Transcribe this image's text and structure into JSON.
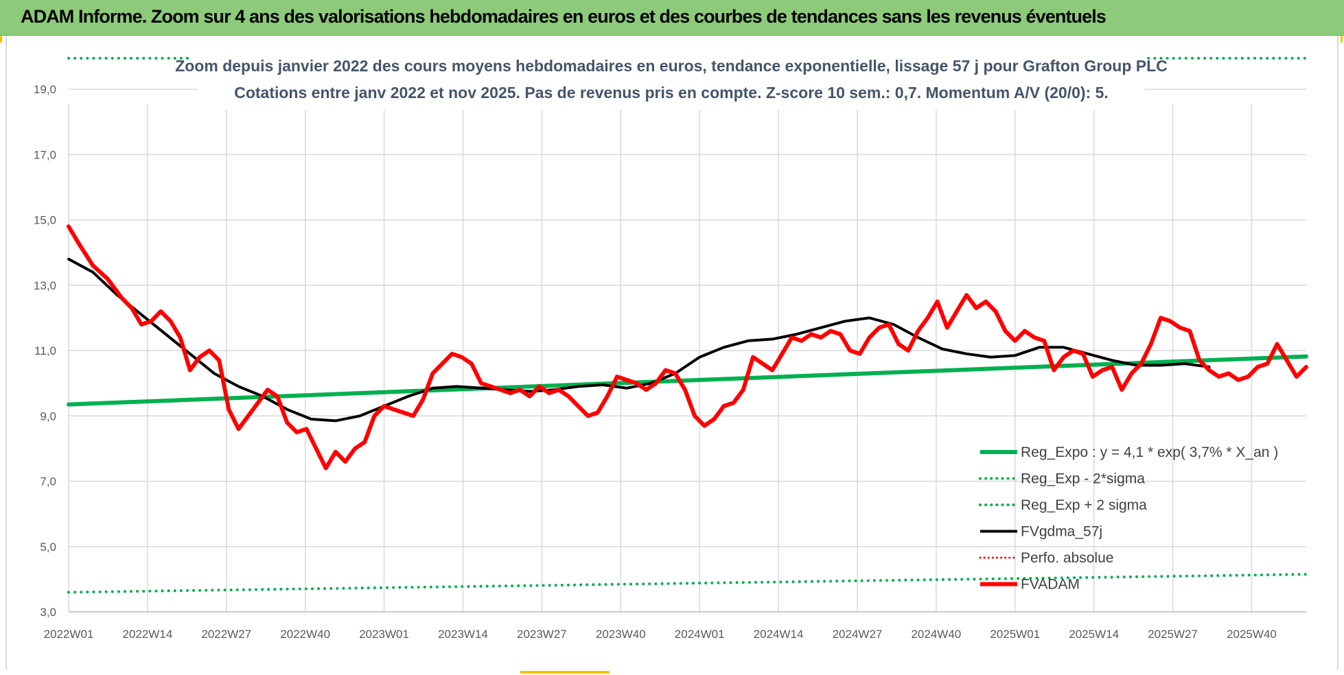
{
  "banner": {
    "title": "ADAM Informe. Zoom sur 4 ans des valorisations hebdomadaires en euros et des courbes de tendances sans les revenus éventuels"
  },
  "colors": {
    "banner_bg": "#8dcb7a",
    "reg_expo": "#00b050",
    "fvgdma": "#000000",
    "fvadam": "#ff0000",
    "perfo": "#ff0000",
    "grid": "#d9d9d9",
    "subtitle": "#44546a"
  },
  "chart_data": {
    "type": "line",
    "title": "Zoom depuis janvier 2022 des cours moyens hebdomadaires en euros, tendance exponentielle, lissage 57 j pour Grafton Group PLC",
    "subtitle": "Cotations entre janv 2022 et nov 2025. Pas de revenus pris en compte. Z-score 10 sem.: 0,7. Momentum A/V (20/0): 5.",
    "xlabel": "",
    "ylabel": "",
    "x_ticks": [
      "2022W01",
      "2022W14",
      "2022W27",
      "2022W40",
      "2023W01",
      "2023W14",
      "2023W27",
      "2023W40",
      "2024W01",
      "2024W14",
      "2024W27",
      "2024W40",
      "2025W01",
      "2025W14",
      "2025W27",
      "2025W40"
    ],
    "y_ticks": [
      "3,0",
      "5,0",
      "7,0",
      "9,0",
      "11,0",
      "13,0",
      "15,0",
      "17,0",
      "19,0"
    ],
    "ylim": [
      3,
      19.8
    ],
    "n_weeks": 205,
    "grid": true,
    "legend_position": "bottom-right",
    "legend": [
      {
        "key": "reg_expo",
        "label": "Reg_Expo : y = 4,1 * exp( 3,7% *  X_an )",
        "style": "solid-thick"
      },
      {
        "key": "reg_minus",
        "label": "Reg_Exp - 2*sigma",
        "style": "dotted"
      },
      {
        "key": "reg_plus",
        "label": "Reg_Exp + 2 sigma",
        "style": "dotted"
      },
      {
        "key": "fvgdma",
        "label": "FVgdma_57j",
        "style": "solid"
      },
      {
        "key": "perfo",
        "label": "Perfo. absolue",
        "style": "dotted"
      },
      {
        "key": "fvadam",
        "label": "FVADAM",
        "style": "solid-thick"
      }
    ],
    "series": [
      {
        "name": "Reg_Expo",
        "points": [
          [
            0,
            9.35
          ],
          [
            204,
            10.82
          ]
        ]
      },
      {
        "name": "Reg_Exp - 2*sigma",
        "points": [
          [
            0,
            3.6
          ],
          [
            204,
            4.15
          ]
        ]
      },
      {
        "name": "Reg_Exp + 2 sigma",
        "points": [
          [
            0,
            19.95
          ],
          [
            20,
            19.95
          ]
        ],
        "points_b": [
          [
            178,
            19.95
          ],
          [
            204,
            19.95
          ]
        ]
      },
      {
        "name": "FVgdma_57j",
        "points": [
          [
            0,
            13.8
          ],
          [
            5,
            13.4
          ],
          [
            10,
            12.7
          ],
          [
            15,
            12.1
          ],
          [
            20,
            11.5
          ],
          [
            25,
            10.9
          ],
          [
            30,
            10.3
          ],
          [
            35,
            9.9
          ],
          [
            40,
            9.6
          ],
          [
            45,
            9.2
          ],
          [
            50,
            8.9
          ],
          [
            55,
            8.85
          ],
          [
            60,
            9.0
          ],
          [
            65,
            9.3
          ],
          [
            70,
            9.6
          ],
          [
            75,
            9.85
          ],
          [
            80,
            9.9
          ],
          [
            85,
            9.85
          ],
          [
            90,
            9.8
          ],
          [
            95,
            9.75
          ],
          [
            100,
            9.8
          ],
          [
            105,
            9.9
          ],
          [
            110,
            9.95
          ],
          [
            115,
            9.85
          ],
          [
            120,
            10.0
          ],
          [
            125,
            10.3
          ],
          [
            130,
            10.8
          ],
          [
            135,
            11.1
          ],
          [
            140,
            11.3
          ],
          [
            145,
            11.35
          ],
          [
            150,
            11.5
          ],
          [
            155,
            11.7
          ],
          [
            160,
            11.9
          ],
          [
            165,
            12.0
          ],
          [
            170,
            11.8
          ],
          [
            175,
            11.4
          ],
          [
            180,
            11.05
          ],
          [
            185,
            10.9
          ],
          [
            190,
            10.8
          ],
          [
            195,
            10.85
          ],
          [
            200,
            11.1
          ],
          [
            205,
            11.1
          ],
          [
            210,
            10.9
          ],
          [
            215,
            10.7
          ],
          [
            220,
            10.55
          ],
          [
            225,
            10.55
          ],
          [
            230,
            10.6
          ],
          [
            235,
            10.5
          ]
        ]
      },
      {
        "name": "FVADAM",
        "points": [
          [
            0,
            14.8
          ],
          [
            2,
            14.3
          ],
          [
            5,
            13.6
          ],
          [
            8,
            13.2
          ],
          [
            11,
            12.6
          ],
          [
            13,
            12.3
          ],
          [
            15,
            11.8
          ],
          [
            17,
            11.9
          ],
          [
            19,
            12.2
          ],
          [
            21,
            11.9
          ],
          [
            23,
            11.4
          ],
          [
            25,
            10.4
          ],
          [
            27,
            10.8
          ],
          [
            29,
            11.0
          ],
          [
            31,
            10.7
          ],
          [
            33,
            9.2
          ],
          [
            35,
            8.6
          ],
          [
            37,
            9.0
          ],
          [
            39,
            9.4
          ],
          [
            41,
            9.8
          ],
          [
            43,
            9.6
          ],
          [
            45,
            8.8
          ],
          [
            47,
            8.5
          ],
          [
            49,
            8.6
          ],
          [
            51,
            8.0
          ],
          [
            53,
            7.4
          ],
          [
            55,
            7.9
          ],
          [
            57,
            7.6
          ],
          [
            59,
            8.0
          ],
          [
            61,
            8.2
          ],
          [
            63,
            9.0
          ],
          [
            65,
            9.3
          ],
          [
            67,
            9.2
          ],
          [
            69,
            9.1
          ],
          [
            71,
            9.0
          ],
          [
            73,
            9.5
          ],
          [
            75,
            10.3
          ],
          [
            77,
            10.6
          ],
          [
            79,
            10.9
          ],
          [
            81,
            10.8
          ],
          [
            83,
            10.6
          ],
          [
            85,
            10.0
          ],
          [
            87,
            9.9
          ],
          [
            89,
            9.8
          ],
          [
            91,
            9.7
          ],
          [
            93,
            9.8
          ],
          [
            95,
            9.6
          ],
          [
            97,
            9.9
          ],
          [
            99,
            9.7
          ],
          [
            101,
            9.8
          ],
          [
            103,
            9.6
          ],
          [
            105,
            9.3
          ],
          [
            107,
            9.0
          ],
          [
            109,
            9.1
          ],
          [
            111,
            9.6
          ],
          [
            113,
            10.2
          ],
          [
            115,
            10.1
          ],
          [
            117,
            10.0
          ],
          [
            119,
            9.8
          ],
          [
            121,
            10.0
          ],
          [
            123,
            10.4
          ],
          [
            125,
            10.3
          ],
          [
            127,
            9.8
          ],
          [
            129,
            9.0
          ],
          [
            131,
            8.7
          ],
          [
            133,
            8.9
          ],
          [
            135,
            9.3
          ],
          [
            137,
            9.4
          ],
          [
            139,
            9.8
          ],
          [
            141,
            10.8
          ],
          [
            143,
            10.6
          ],
          [
            145,
            10.4
          ],
          [
            147,
            10.9
          ],
          [
            149,
            11.4
          ],
          [
            151,
            11.3
          ],
          [
            153,
            11.5
          ],
          [
            155,
            11.4
          ],
          [
            157,
            11.6
          ],
          [
            159,
            11.5
          ],
          [
            161,
            11.0
          ],
          [
            163,
            10.9
          ],
          [
            165,
            11.4
          ],
          [
            167,
            11.7
          ],
          [
            169,
            11.8
          ],
          [
            171,
            11.2
          ],
          [
            173,
            11.0
          ],
          [
            175,
            11.6
          ],
          [
            177,
            12.0
          ],
          [
            179,
            12.5
          ],
          [
            181,
            11.7
          ],
          [
            183,
            12.2
          ],
          [
            185,
            12.7
          ],
          [
            187,
            12.3
          ],
          [
            189,
            12.5
          ],
          [
            191,
            12.2
          ],
          [
            193,
            11.6
          ],
          [
            195,
            11.3
          ],
          [
            197,
            11.6
          ],
          [
            199,
            11.4
          ],
          [
            201,
            11.3
          ],
          [
            203,
            10.4
          ],
          [
            205,
            10.8
          ],
          [
            207,
            11.0
          ],
          [
            209,
            10.9
          ],
          [
            211,
            10.2
          ],
          [
            213,
            10.4
          ],
          [
            215,
            10.5
          ],
          [
            217,
            9.8
          ],
          [
            219,
            10.3
          ],
          [
            221,
            10.6
          ],
          [
            223,
            11.2
          ],
          [
            225,
            12.0
          ],
          [
            227,
            11.9
          ],
          [
            229,
            11.7
          ],
          [
            231,
            11.6
          ],
          [
            233,
            10.7
          ],
          [
            235,
            10.4
          ],
          [
            237,
            10.2
          ],
          [
            239,
            10.3
          ],
          [
            241,
            10.1
          ],
          [
            243,
            10.2
          ],
          [
            245,
            10.5
          ],
          [
            247,
            10.6
          ],
          [
            249,
            11.2
          ],
          [
            251,
            10.7
          ],
          [
            253,
            10.2
          ],
          [
            255,
            10.5
          ]
        ]
      }
    ]
  }
}
